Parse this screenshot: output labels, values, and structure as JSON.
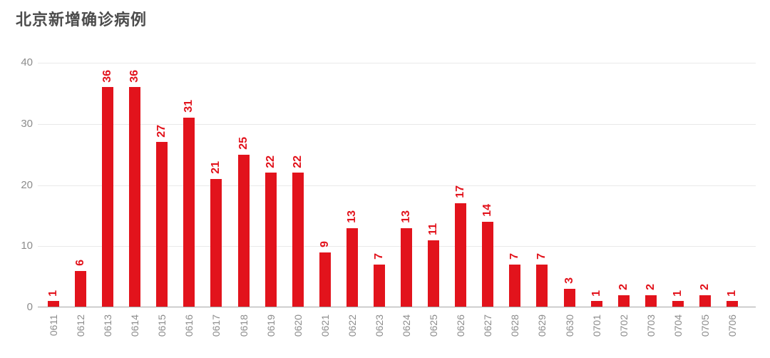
{
  "title": "北京新增确诊病例",
  "colors": {
    "background": "#ffffff",
    "bar": "#e2131c",
    "value_label": "#e2131c",
    "axis_label": "#8c8c8c",
    "gridline": "#e9e9e9",
    "axis_line": "#a6a6a6",
    "title": "#4d4d4d"
  },
  "chart_data": {
    "type": "bar",
    "title": "北京新增确诊病例",
    "categories": [
      "0611",
      "0612",
      "0613",
      "0614",
      "0615",
      "0616",
      "0617",
      "0618",
      "0619",
      "0620",
      "0621",
      "0622",
      "0623",
      "0624",
      "0625",
      "0626",
      "0627",
      "0628",
      "0629",
      "0630",
      "0701",
      "0702",
      "0703",
      "0704",
      "0705",
      "0706"
    ],
    "values": [
      1,
      6,
      36,
      36,
      27,
      31,
      21,
      25,
      22,
      22,
      9,
      13,
      7,
      13,
      11,
      17,
      14,
      7,
      7,
      3,
      1,
      2,
      2,
      1,
      2,
      1
    ],
    "xlabel": "",
    "ylabel": "",
    "ylim": [
      0,
      40
    ],
    "yticks": [
      0,
      10,
      20,
      30,
      40
    ],
    "grid": true,
    "value_labels": true,
    "value_label_rotation": -90,
    "xtick_rotation": -90,
    "legend": null
  }
}
